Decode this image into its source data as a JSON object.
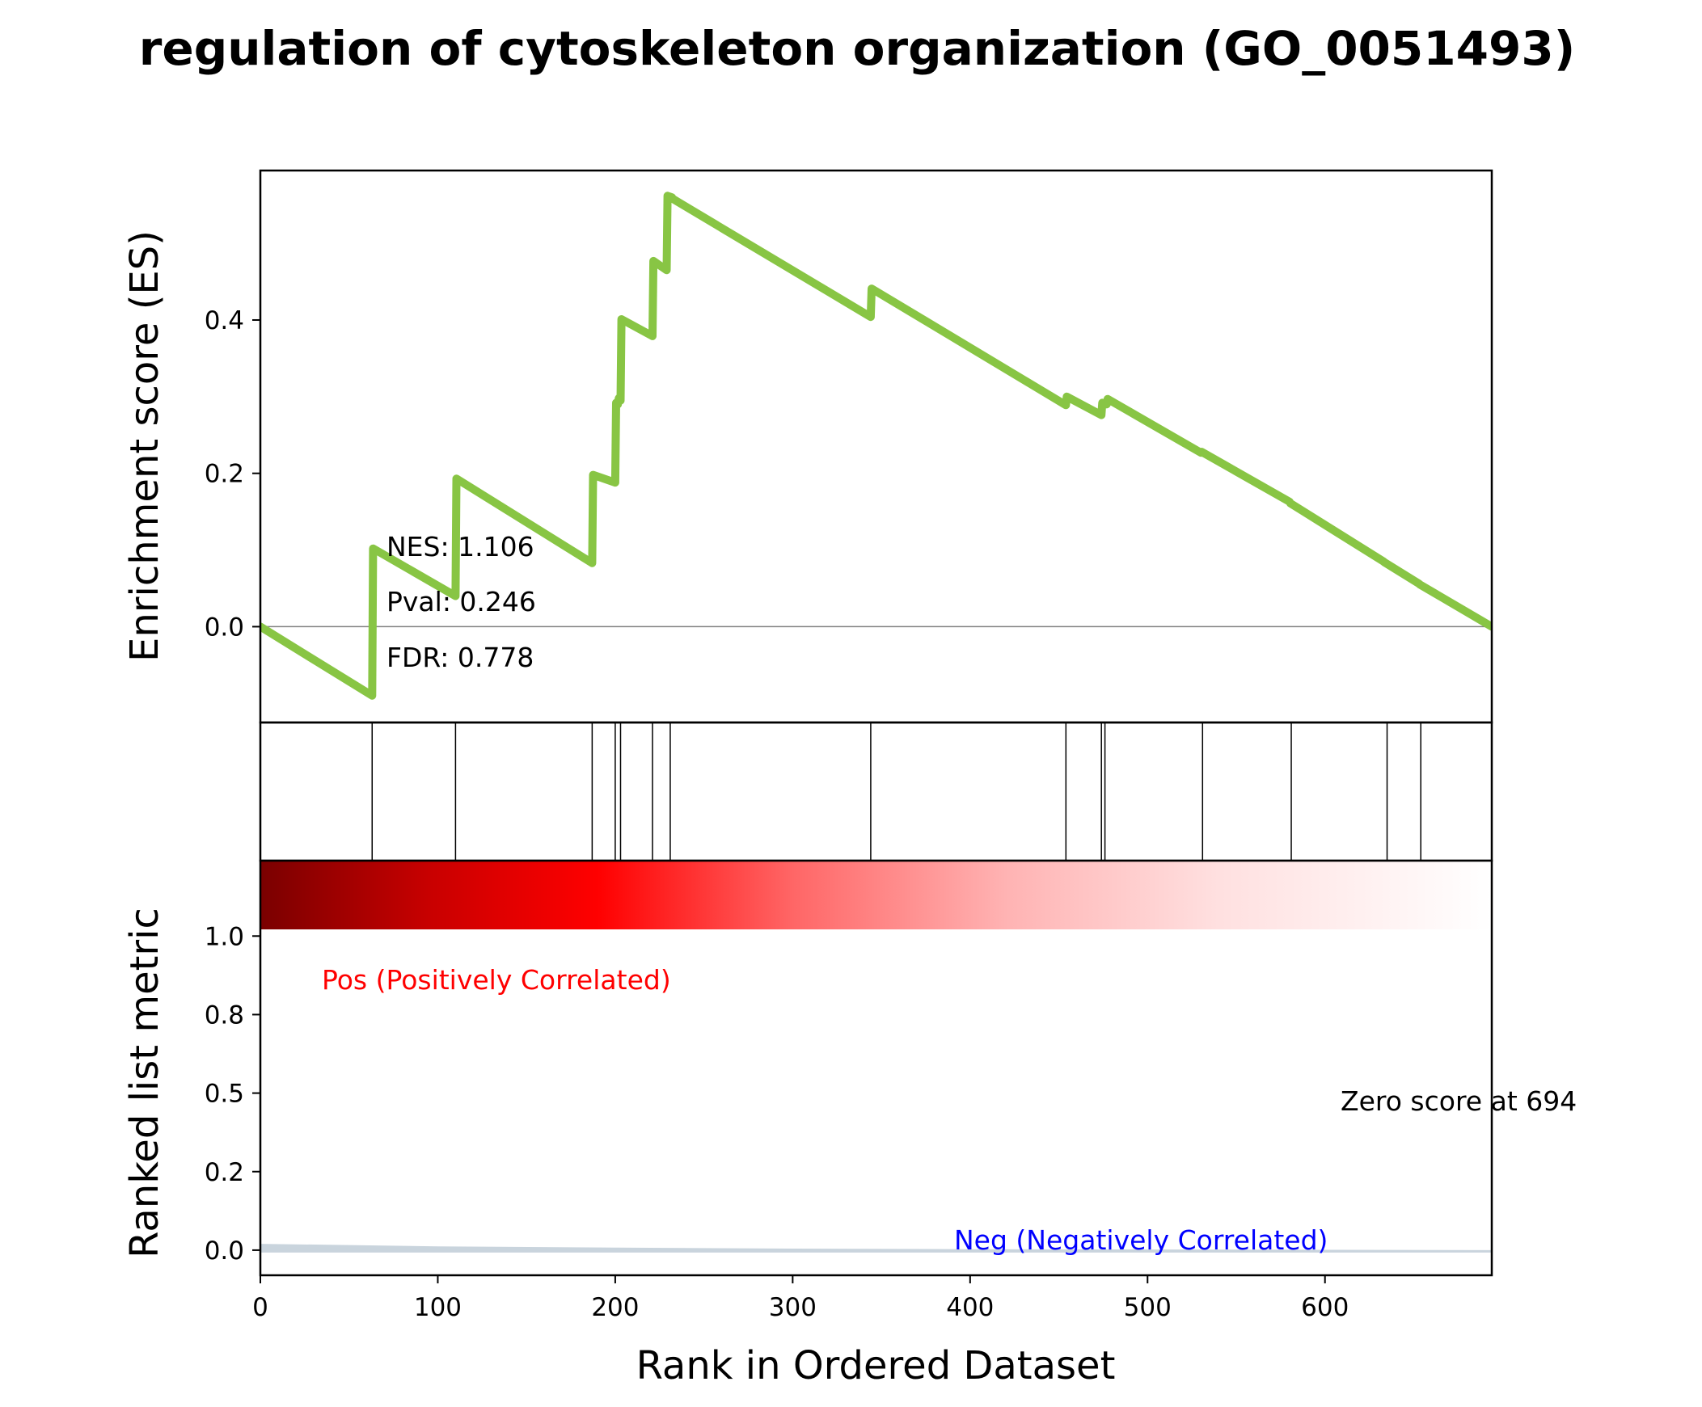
{
  "chart_data": {
    "type": "line",
    "title": "regulation of cytoskeleton organization (GO_0051493)",
    "xlabel": "Rank in Ordered Dataset",
    "xlim": [
      0,
      694
    ],
    "x_ticks": [
      0,
      100,
      200,
      300,
      400,
      500,
      600
    ],
    "es_panel": {
      "ylabel": "Enrichment score (ES)",
      "ylim": [
        -0.125,
        0.595
      ],
      "y_ticks": [
        0.0,
        0.2,
        0.4
      ],
      "y_tick_labels": [
        "0.0",
        "0.2",
        "0.4"
      ],
      "zero_line": true,
      "line_color": "#88c544",
      "series": [
        {
          "x": [
            0,
            63,
            63.5,
            110,
            110.5,
            187,
            187.5,
            200,
            200.5,
            201.5,
            202,
            203,
            203.5,
            221,
            221.5,
            229,
            229.5,
            232,
            232.5,
            344,
            344.5,
            454,
            454.5,
            474,
            474.5,
            477,
            477.5,
            530,
            530.5,
            580,
            580.5,
            633,
            633.5,
            653,
            653.5,
            694
          ],
          "y": [
            0.0,
            -0.09,
            0.102,
            0.04,
            0.193,
            0.083,
            0.198,
            0.188,
            0.292,
            0.29,
            0.298,
            0.295,
            0.401,
            0.379,
            0.477,
            0.465,
            0.562,
            0.56,
            0.558,
            0.404,
            0.441,
            0.289,
            0.3,
            0.276,
            0.292,
            0.29,
            0.297,
            0.227,
            0.228,
            0.163,
            0.161,
            0.085,
            0.084,
            0.056,
            0.055,
            0.0
          ]
        }
      ],
      "stats": {
        "nes": "NES: 1.106",
        "pval": "Pval: 0.246",
        "fdr": "FDR: 0.778"
      }
    },
    "hits_panel": {
      "hit_ranks": [
        63,
        110,
        187,
        200,
        203,
        221,
        231,
        344,
        454,
        474,
        476,
        531,
        581,
        635,
        654
      ]
    },
    "metric_panel": {
      "ylabel": "Ranked list metric",
      "ylim": [
        -0.08,
        1.24
      ],
      "y_ticks": [
        0.0,
        0.25,
        0.5,
        0.75,
        1.0
      ],
      "y_tick_labels": [
        "0.0",
        "0.2",
        "0.5",
        "0.8",
        "1.0"
      ],
      "heatmap_stops": [
        {
          "rank": 0,
          "color": "#7a0000"
        },
        {
          "rank": 95,
          "color": "#c80000"
        },
        {
          "rank": 190,
          "color": "#ff0000"
        },
        {
          "rank": 300,
          "color": "#ff6666"
        },
        {
          "rank": 420,
          "color": "#ffb3b3"
        },
        {
          "rank": 540,
          "color": "#ffe0e0"
        },
        {
          "rank": 694,
          "color": "#ffffff"
        }
      ],
      "area_color": "#c9d4dd",
      "metric_curve": {
        "x": [
          0,
          100,
          200,
          300,
          400,
          500,
          600,
          694
        ],
        "y": [
          0.02,
          0.012,
          0.008,
          0.005,
          0.003,
          0.002,
          0.001,
          0.0
        ]
      },
      "labels": {
        "pos": "Pos (Positively Correlated)",
        "neg": "Neg (Negatively Correlated)",
        "zero_score": "Zero score at 694"
      },
      "pos_color": "#ff0000",
      "neg_color": "#0000ff"
    }
  }
}
